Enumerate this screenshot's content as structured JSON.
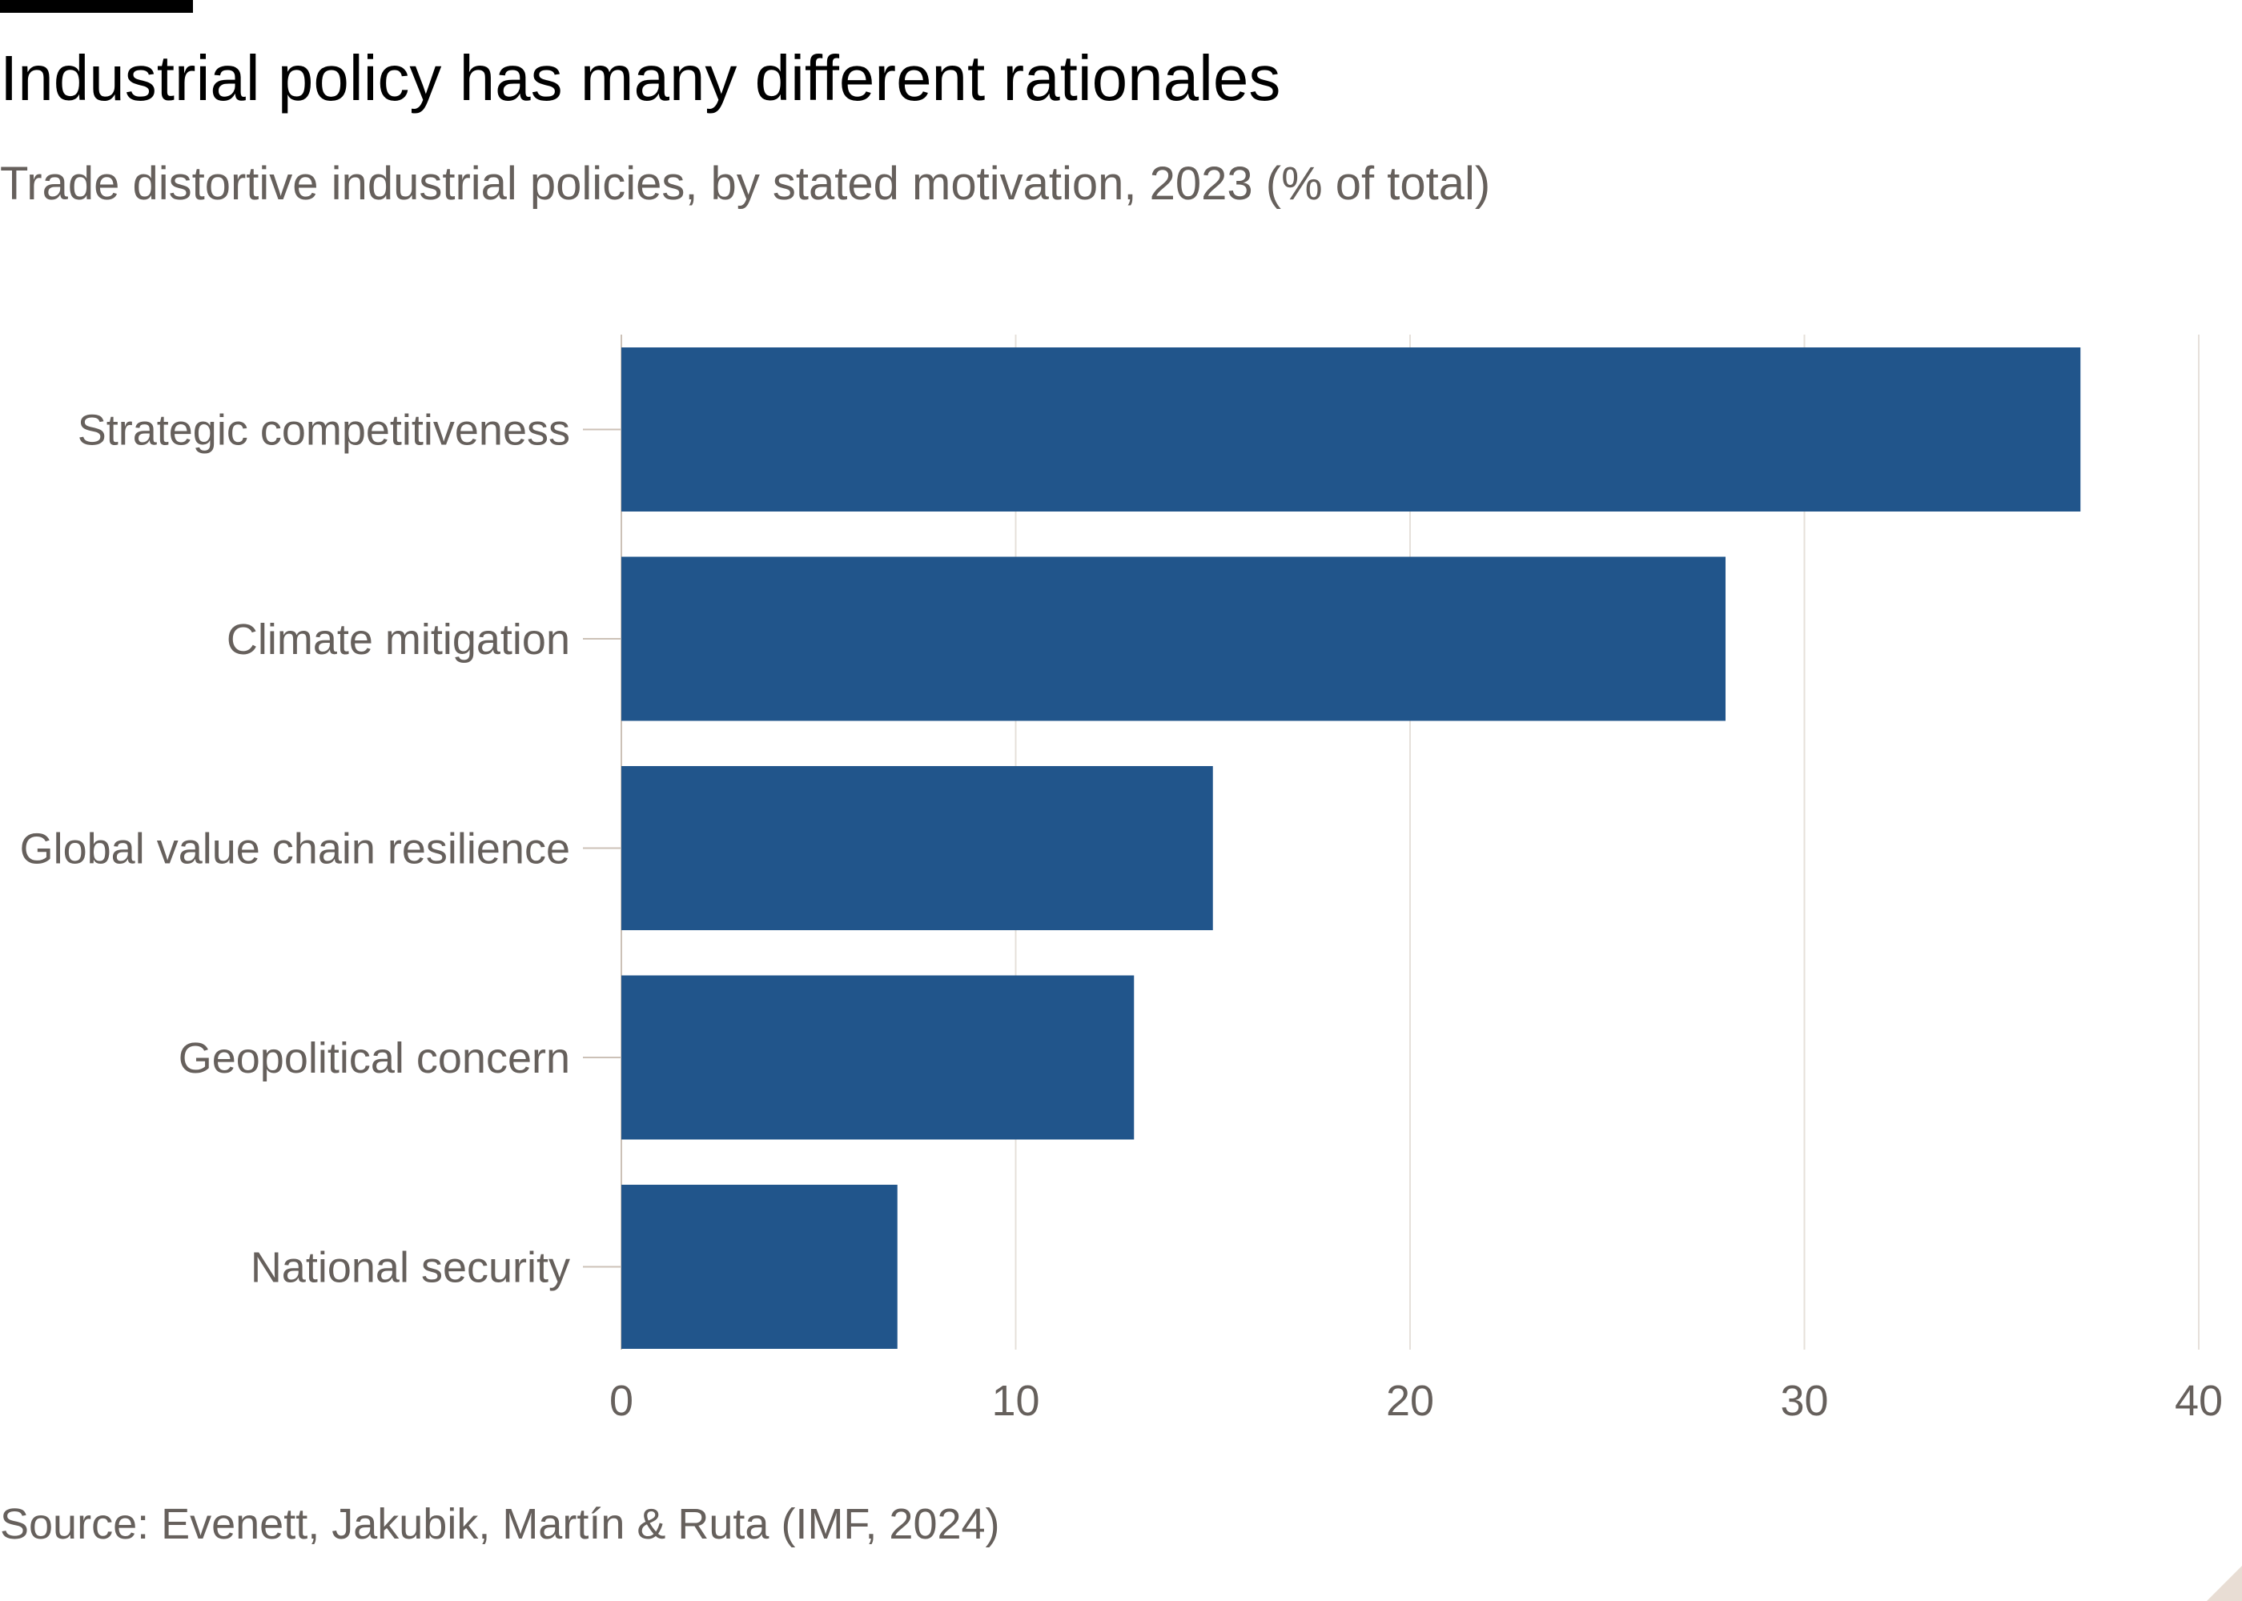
{
  "header": {
    "title": "Industrial policy has many different rationales",
    "subtitle": "Trade distortive industrial policies, by stated motivation, 2023 (% of total)"
  },
  "footer": {
    "source": "Source: Evenett, Jakubik, Martín & Ruta (IMF, 2024)"
  },
  "colors": {
    "bar": "#21558b",
    "grid": "#e6e0da",
    "label": "#66605c",
    "tick_mark": "#ccc1b7"
  },
  "chart_data": {
    "type": "bar",
    "orientation": "horizontal",
    "title": "Industrial policy has many different rationales",
    "subtitle": "Trade distortive industrial policies, by stated motivation, 2023 (% of total)",
    "categories": [
      "Strategic competitiveness",
      "Climate mitigation",
      "Global value chain resilience",
      "Geopolitical concern",
      "National security"
    ],
    "values": [
      37,
      28,
      15,
      13,
      7
    ],
    "xlim": [
      0,
      40
    ],
    "xticks": [
      0,
      10,
      20,
      30,
      40
    ],
    "xlabel": "",
    "ylabel": "",
    "grid": true,
    "legend": false
  }
}
